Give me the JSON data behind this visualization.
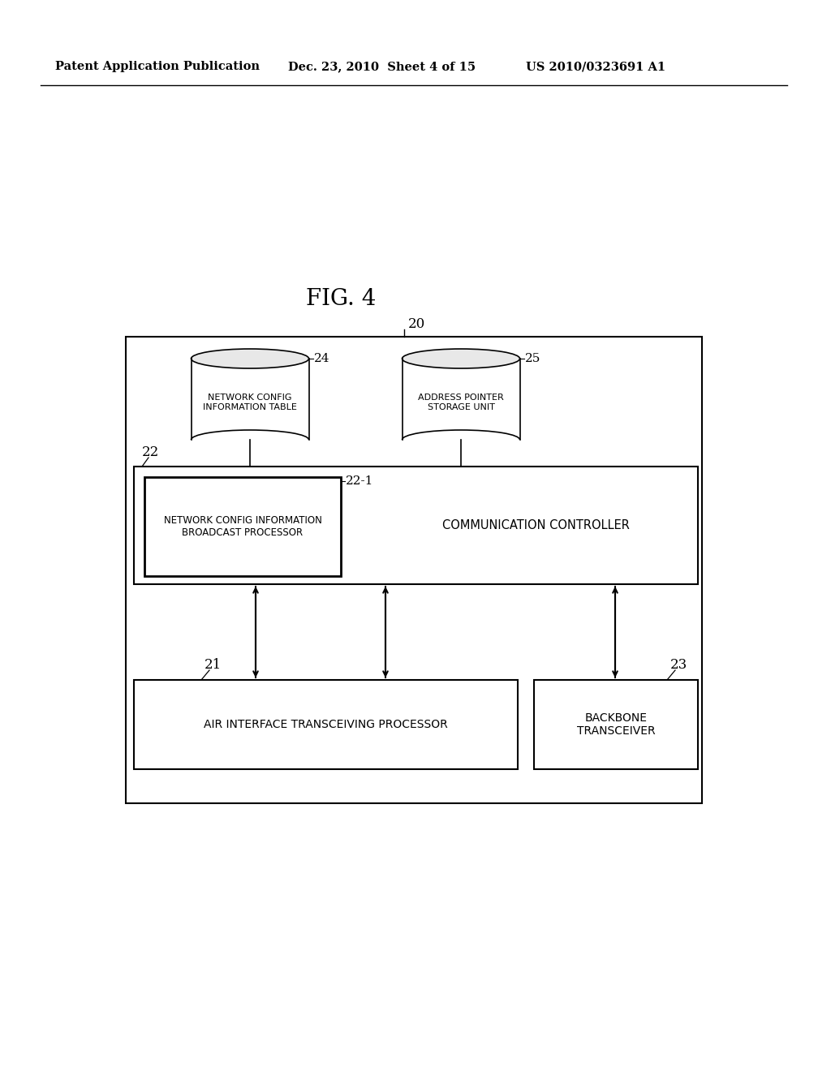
{
  "background_color": "#ffffff",
  "header_left": "Patent Application Publication",
  "header_mid": "Dec. 23, 2010  Sheet 4 of 15",
  "header_right": "US 2010/0323691 A1",
  "fig_label": "FIG. 4",
  "outer_box_label": "20",
  "db1_label": "24",
  "db1_text": "NETWORK CONFIG\nINFORMATION TABLE",
  "db2_label": "25",
  "db2_text": "ADDRESS POINTER\nSTORAGE UNIT",
  "inner_box_label": "22",
  "inner_box_label2": "22-1",
  "broadcast_text": "NETWORK CONFIG INFORMATION\nBROADCAST PROCESSOR",
  "comm_ctrl_text": "COMMUNICATION CONTROLLER",
  "air_label": "21",
  "air_text": "AIR INTERFACE TRANSCEIVING PROCESSOR",
  "backbone_label": "23",
  "backbone_text": "BACKBONE\nTRANSCEIVER"
}
